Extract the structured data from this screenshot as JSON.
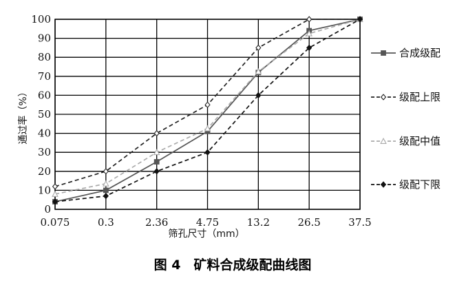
{
  "chart_data": {
    "type": "line",
    "categories": [
      "0.075",
      "0.3",
      "2.36",
      "4.75",
      "13.2",
      "26.5",
      "37.5"
    ],
    "xlabel": "筛孔尺寸（mm）",
    "ylabel": "通过率（%）",
    "ylim": [
      0,
      100
    ],
    "yticks": [
      0,
      10,
      20,
      30,
      40,
      50,
      60,
      70,
      80,
      90,
      100
    ],
    "grid": true,
    "legend_position": "right",
    "caption": "图 4　矿料合成级配曲线图",
    "series": [
      {
        "name": "合成级配",
        "values": [
          4,
          10,
          25,
          41,
          72,
          94,
          100
        ],
        "color": "#555555",
        "dash": "solid",
        "marker": "square"
      },
      {
        "name": "级配上限",
        "values": [
          12,
          20,
          40,
          55,
          85,
          100,
          100
        ],
        "color": "#222222",
        "dash": "dashed",
        "marker": "diamond-open"
      },
      {
        "name": "级配中值",
        "values": [
          8,
          13.5,
          30,
          42.5,
          72.5,
          92.5,
          100
        ],
        "color": "#aaaaaa",
        "dash": "dashed",
        "marker": "triangle-open"
      },
      {
        "name": "级配下限",
        "values": [
          4,
          7,
          20,
          30,
          60,
          85,
          100
        ],
        "color": "#111111",
        "dash": "dashed",
        "marker": "diamond"
      }
    ]
  }
}
